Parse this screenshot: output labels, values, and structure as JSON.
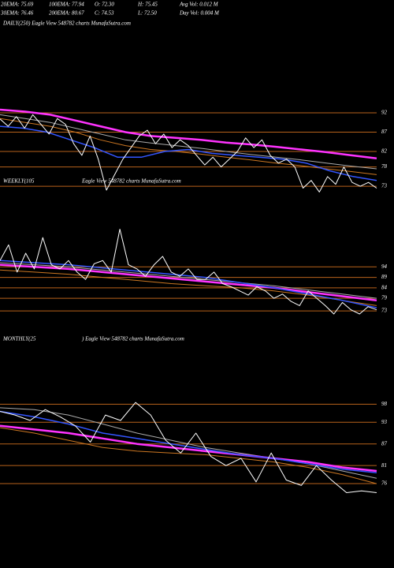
{
  "header": {
    "lines": [
      [
        "20EMA: 75.69",
        "100EMA: 77.94",
        "O: 72.30",
        "H: 75.45",
        "Avg Vol: 0.012  M"
      ],
      [
        "30EMA: 76.46",
        "200EMA: 80.67",
        "C: 74.53",
        "L: 72.50",
        "Day Vol: 0.004  M"
      ]
    ]
  },
  "chart_data": [
    {
      "type": "line",
      "title": "DAILY(250) Eagle  View  548782  charts MunafaSutra.com",
      "ylim": [
        62,
        113
      ],
      "yticks": [
        92,
        87,
        82,
        78,
        73
      ],
      "grid": true,
      "grid_color": "#b8621b",
      "series": [
        {
          "color": "#cc7722",
          "values": [
            90.5,
            89.5,
            88.5,
            87,
            85,
            83.5,
            82.5,
            82,
            81.3,
            80.5,
            79.8,
            79,
            78.3,
            77.5,
            76.8,
            76
          ]
        },
        {
          "color": "#aaaaaa",
          "values": [
            91.5,
            90.5,
            89.5,
            88,
            86.5,
            85,
            84.2,
            83.5,
            82.8,
            82,
            81.2,
            80.5,
            79.8,
            79,
            78.2,
            77.5
          ]
        },
        {
          "color": "#ff33ff",
          "values": [
            92.8,
            92.3,
            91.5,
            90,
            88.5,
            87,
            86,
            85.5,
            85,
            84.3,
            83.8,
            83.2,
            82.5,
            81.8,
            81,
            80.2
          ]
        },
        {
          "color": "#3355ff",
          "values": [
            88.5,
            88,
            87,
            85,
            83,
            80.5,
            80.5,
            82,
            82.5,
            81.5,
            81,
            80.5,
            80,
            79,
            77,
            75.5,
            74.5
          ]
        },
        {
          "color": "#ffffff",
          "values": [
            90.4,
            88.5,
            91,
            88,
            91.5,
            89,
            86.5,
            90.5,
            89,
            84,
            81,
            86,
            80,
            72,
            76,
            80,
            83,
            86,
            87.5,
            84,
            86.5,
            83,
            85,
            83.5,
            81,
            78.5,
            80.5,
            78,
            80,
            82,
            85.5,
            83,
            85,
            81,
            79,
            80,
            78,
            72.5,
            74.5,
            71.5,
            75.5,
            73.5,
            78,
            74,
            73,
            74,
            72.5
          ]
        }
      ]
    },
    {
      "type": "line",
      "title": "WEEKLY(105",
      "subtitle": "Eagle  View  548782  charts MunafaSutra.com",
      "ylim": [
        67,
        131
      ],
      "yticks": [
        94,
        89,
        84,
        79,
        73
      ],
      "grid": true,
      "grid_color": "#b8621b",
      "series": [
        {
          "color": "#cc7722",
          "values": [
            92.5,
            91.5,
            90.5,
            89,
            87.5,
            86,
            85,
            84,
            82.5,
            80.5,
            78,
            75.5
          ]
        },
        {
          "color": "#aaaaaa",
          "values": [
            96,
            95,
            94,
            92.5,
            91,
            89.5,
            88,
            86.5,
            85,
            83,
            81,
            79
          ]
        },
        {
          "color": "#ff33ff",
          "values": [
            95,
            94,
            93,
            91.5,
            90,
            88.5,
            87,
            85.5,
            84,
            82,
            80,
            78
          ]
        },
        {
          "color": "#3355ff",
          "values": [
            97,
            96,
            95,
            93.5,
            92,
            90.5,
            89,
            86.5,
            84,
            81,
            78,
            74.5
          ]
        },
        {
          "color": "#ffffff",
          "values": [
            97,
            104.5,
            91.5,
            100.5,
            93,
            108,
            95,
            93,
            97,
            91.5,
            88,
            95.5,
            97,
            91.5,
            112,
            95,
            93,
            89.5,
            95,
            99,
            91.5,
            89.5,
            93,
            88,
            88,
            91.5,
            86,
            84.5,
            82.5,
            80.5,
            84.5,
            82.5,
            79,
            81,
            77.5,
            75.5,
            82.5,
            79,
            75.5,
            71.5,
            77,
            73.5,
            71.5,
            75,
            73.5
          ]
        }
      ]
    },
    {
      "type": "line",
      "title": "MONTHLY(25",
      "subtitle": ") Eagle  View  548782  charts MunafaSutra.com",
      "ylim": [
        57,
        116
      ],
      "yticks": [
        98,
        93,
        87,
        81,
        76
      ],
      "grid": true,
      "grid_color": "#b8621b",
      "series": [
        {
          "color": "#cc7722",
          "values": [
            91.5,
            90,
            88,
            86,
            85,
            84.5,
            84,
            83,
            82,
            80.5,
            78.5,
            76
          ]
        },
        {
          "color": "#aaaaaa",
          "values": [
            97,
            96.5,
            95,
            92.5,
            90,
            88,
            86,
            84.5,
            83,
            81.5,
            79.5,
            77.5
          ]
        },
        {
          "color": "#ff33ff",
          "values": [
            92,
            91,
            90,
            88.5,
            87,
            86,
            85,
            84,
            83,
            82,
            80.5,
            79.5
          ]
        },
        {
          "color": "#3355ff",
          "values": [
            96,
            94.5,
            92.5,
            90,
            88.5,
            87,
            85.5,
            84,
            83,
            81.5,
            80,
            79
          ]
        },
        {
          "color": "#ffffff",
          "values": [
            96,
            95,
            93.5,
            96.5,
            94.5,
            92,
            87.5,
            95,
            93.5,
            98.5,
            95,
            88,
            84.5,
            90,
            83.5,
            81,
            83,
            76.5,
            84.5,
            77,
            75.5,
            81,
            77,
            73.5,
            74,
            73.5
          ]
        }
      ]
    }
  ]
}
